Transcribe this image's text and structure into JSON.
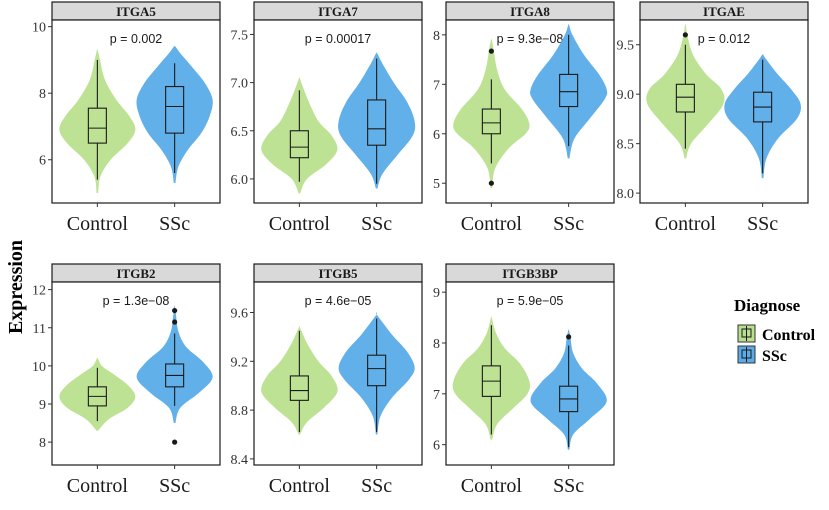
{
  "figure": {
    "ylabel": "Expression",
    "legend": {
      "title": "Diagnose",
      "items": [
        "Control",
        "SSc"
      ]
    },
    "colors": {
      "Control": "#b9e08e",
      "SSc": "#5aace8",
      "strip": "#d9d9d9"
    }
  },
  "chart_data": [
    {
      "type": "violin",
      "title": "ITGA5",
      "pvalue": "p = 0.002",
      "categories": [
        "Control",
        "SSc"
      ],
      "ylim": [
        4.7,
        10.2
      ],
      "yticks": [
        6,
        8,
        10
      ],
      "groups": [
        {
          "name": "Control",
          "min": 5.0,
          "max": 9.3,
          "q1": 6.5,
          "median": 6.95,
          "q3": 7.55,
          "whisker_low": 5.4,
          "whisker_high": 9.0,
          "outliers": [],
          "shape": [
            [
              5.0,
              0.02
            ],
            [
              5.5,
              0.08
            ],
            [
              6.0,
              0.35
            ],
            [
              6.5,
              0.8
            ],
            [
              6.9,
              1.0
            ],
            [
              7.3,
              0.85
            ],
            [
              7.8,
              0.5
            ],
            [
              8.4,
              0.2
            ],
            [
              9.0,
              0.07
            ],
            [
              9.3,
              0.01
            ]
          ]
        },
        {
          "name": "SSc",
          "min": 5.3,
          "max": 9.4,
          "q1": 6.8,
          "median": 7.6,
          "q3": 8.2,
          "whisker_low": 5.6,
          "whisker_high": 8.9,
          "outliers": [],
          "shape": [
            [
              5.3,
              0.02
            ],
            [
              5.8,
              0.1
            ],
            [
              6.3,
              0.35
            ],
            [
              6.8,
              0.7
            ],
            [
              7.3,
              0.92
            ],
            [
              7.8,
              1.0
            ],
            [
              8.3,
              0.8
            ],
            [
              8.8,
              0.45
            ],
            [
              9.2,
              0.15
            ],
            [
              9.4,
              0.02
            ]
          ]
        }
      ]
    },
    {
      "type": "violin",
      "title": "ITGA7",
      "pvalue": "p = 0.00017",
      "categories": [
        "Control",
        "SSc"
      ],
      "ylim": [
        5.75,
        7.65
      ],
      "yticks": [
        6.0,
        6.5,
        7.0,
        7.5
      ],
      "groups": [
        {
          "name": "Control",
          "min": 5.85,
          "max": 7.05,
          "q1": 6.22,
          "median": 6.33,
          "q3": 6.5,
          "whisker_low": 5.97,
          "whisker_high": 6.92,
          "outliers": [],
          "shape": [
            [
              5.85,
              0.02
            ],
            [
              6.0,
              0.2
            ],
            [
              6.15,
              0.7
            ],
            [
              6.3,
              1.0
            ],
            [
              6.45,
              0.85
            ],
            [
              6.6,
              0.5
            ],
            [
              6.8,
              0.25
            ],
            [
              7.0,
              0.05
            ],
            [
              7.05,
              0.01
            ]
          ]
        },
        {
          "name": "SSc",
          "min": 5.9,
          "max": 7.3,
          "q1": 6.35,
          "median": 6.52,
          "q3": 6.82,
          "whisker_low": 5.95,
          "whisker_high": 7.25,
          "outliers": [],
          "shape": [
            [
              5.9,
              0.02
            ],
            [
              6.05,
              0.15
            ],
            [
              6.25,
              0.55
            ],
            [
              6.45,
              0.95
            ],
            [
              6.6,
              1.0
            ],
            [
              6.8,
              0.8
            ],
            [
              7.0,
              0.45
            ],
            [
              7.2,
              0.15
            ],
            [
              7.3,
              0.02
            ]
          ]
        }
      ]
    },
    {
      "type": "violin",
      "title": "ITGA8",
      "pvalue": "p = 9.3e−08",
      "categories": [
        "Control",
        "SSc"
      ],
      "ylim": [
        4.6,
        8.3
      ],
      "yticks": [
        5,
        6,
        7,
        8
      ],
      "groups": [
        {
          "name": "Control",
          "min": 4.9,
          "max": 7.9,
          "q1": 6.0,
          "median": 6.22,
          "q3": 6.5,
          "whisker_low": 5.4,
          "whisker_high": 7.1,
          "outliers": [
            7.67,
            5.0
          ],
          "shape": [
            [
              4.9,
              0.02
            ],
            [
              5.3,
              0.1
            ],
            [
              5.7,
              0.45
            ],
            [
              6.0,
              0.9
            ],
            [
              6.2,
              1.0
            ],
            [
              6.5,
              0.8
            ],
            [
              6.9,
              0.35
            ],
            [
              7.3,
              0.15
            ],
            [
              7.7,
              0.06
            ],
            [
              7.9,
              0.01
            ]
          ]
        },
        {
          "name": "SSc",
          "min": 5.5,
          "max": 8.2,
          "q1": 6.55,
          "median": 6.85,
          "q3": 7.2,
          "whisker_low": 5.75,
          "whisker_high": 8.0,
          "outliers": [],
          "shape": [
            [
              5.5,
              0.02
            ],
            [
              5.9,
              0.15
            ],
            [
              6.3,
              0.55
            ],
            [
              6.7,
              0.95
            ],
            [
              6.9,
              1.0
            ],
            [
              7.2,
              0.8
            ],
            [
              7.6,
              0.4
            ],
            [
              8.0,
              0.1
            ],
            [
              8.2,
              0.01
            ]
          ]
        }
      ]
    },
    {
      "type": "violin",
      "title": "ITGAE",
      "pvalue": "p = 0.012",
      "categories": [
        "Control",
        "SSc"
      ],
      "ylim": [
        7.9,
        9.75
      ],
      "yticks": [
        8.0,
        8.5,
        9.0,
        9.5
      ],
      "groups": [
        {
          "name": "Control",
          "min": 8.35,
          "max": 9.7,
          "q1": 8.82,
          "median": 8.97,
          "q3": 9.1,
          "whisker_low": 8.45,
          "whisker_high": 9.5,
          "outliers": [
            9.6
          ],
          "shape": [
            [
              8.35,
              0.02
            ],
            [
              8.5,
              0.15
            ],
            [
              8.7,
              0.6
            ],
            [
              8.9,
              1.0
            ],
            [
              9.05,
              0.95
            ],
            [
              9.2,
              0.55
            ],
            [
              9.4,
              0.2
            ],
            [
              9.6,
              0.05
            ],
            [
              9.7,
              0.01
            ]
          ]
        },
        {
          "name": "SSc",
          "min": 8.15,
          "max": 9.4,
          "q1": 8.72,
          "median": 8.87,
          "q3": 9.02,
          "whisker_low": 8.2,
          "whisker_high": 9.35,
          "outliers": [],
          "shape": [
            [
              8.15,
              0.02
            ],
            [
              8.35,
              0.1
            ],
            [
              8.55,
              0.4
            ],
            [
              8.75,
              0.9
            ],
            [
              8.9,
              1.0
            ],
            [
              9.05,
              0.75
            ],
            [
              9.2,
              0.4
            ],
            [
              9.35,
              0.1
            ],
            [
              9.4,
              0.01
            ]
          ]
        }
      ]
    },
    {
      "type": "violin",
      "title": "ITGB2",
      "pvalue": "p = 1.3e−08",
      "categories": [
        "Control",
        "SSc"
      ],
      "ylim": [
        7.4,
        12.2
      ],
      "yticks": [
        8,
        9,
        10,
        11,
        12
      ],
      "groups": [
        {
          "name": "Control",
          "min": 8.3,
          "max": 10.2,
          "q1": 8.95,
          "median": 9.2,
          "q3": 9.45,
          "whisker_low": 8.55,
          "whisker_high": 9.95,
          "outliers": [],
          "shape": [
            [
              8.3,
              0.02
            ],
            [
              8.6,
              0.3
            ],
            [
              8.9,
              0.8
            ],
            [
              9.2,
              1.0
            ],
            [
              9.5,
              0.8
            ],
            [
              9.8,
              0.4
            ],
            [
              10.0,
              0.12
            ],
            [
              10.2,
              0.01
            ]
          ]
        },
        {
          "name": "SSc",
          "min": 8.5,
          "max": 11.55,
          "q1": 9.45,
          "median": 9.75,
          "q3": 10.05,
          "whisker_low": 8.95,
          "whisker_high": 10.85,
          "outliers": [
            11.45,
            11.15,
            8.0
          ],
          "shape": [
            [
              8.5,
              0.02
            ],
            [
              8.9,
              0.15
            ],
            [
              9.3,
              0.65
            ],
            [
              9.7,
              1.0
            ],
            [
              10.1,
              0.75
            ],
            [
              10.5,
              0.3
            ],
            [
              10.9,
              0.1
            ],
            [
              11.3,
              0.04
            ],
            [
              11.55,
              0.01
            ]
          ]
        }
      ]
    },
    {
      "type": "violin",
      "title": "ITGB5",
      "pvalue": "p = 4.6e−05",
      "categories": [
        "Control",
        "SSc"
      ],
      "ylim": [
        8.35,
        9.85
      ],
      "yticks": [
        8.4,
        8.8,
        9.2,
        9.6
      ],
      "groups": [
        {
          "name": "Control",
          "min": 8.6,
          "max": 9.48,
          "q1": 8.88,
          "median": 8.96,
          "q3": 9.08,
          "whisker_low": 8.62,
          "whisker_high": 9.45,
          "outliers": [],
          "shape": [
            [
              8.6,
              0.02
            ],
            [
              8.7,
              0.2
            ],
            [
              8.82,
              0.65
            ],
            [
              8.95,
              1.0
            ],
            [
              9.08,
              0.85
            ],
            [
              9.2,
              0.5
            ],
            [
              9.35,
              0.2
            ],
            [
              9.48,
              0.01
            ]
          ]
        },
        {
          "name": "SSc",
          "min": 8.6,
          "max": 9.58,
          "q1": 9.0,
          "median": 9.14,
          "q3": 9.25,
          "whisker_low": 8.62,
          "whisker_high": 9.55,
          "outliers": [],
          "shape": [
            [
              8.6,
              0.02
            ],
            [
              8.75,
              0.1
            ],
            [
              8.9,
              0.4
            ],
            [
              9.05,
              0.85
            ],
            [
              9.15,
              1.0
            ],
            [
              9.28,
              0.8
            ],
            [
              9.42,
              0.4
            ],
            [
              9.58,
              0.01
            ]
          ]
        }
      ]
    },
    {
      "type": "violin",
      "title": "ITGB3BP",
      "pvalue": "p = 5.9e−05",
      "categories": [
        "Control",
        "SSc"
      ],
      "ylim": [
        5.6,
        9.2
      ],
      "yticks": [
        6,
        7,
        8,
        9
      ],
      "groups": [
        {
          "name": "Control",
          "min": 6.1,
          "max": 8.5,
          "q1": 6.95,
          "median": 7.25,
          "q3": 7.55,
          "whisker_low": 6.2,
          "whisker_high": 8.35,
          "outliers": [],
          "shape": [
            [
              6.1,
              0.02
            ],
            [
              6.4,
              0.15
            ],
            [
              6.7,
              0.55
            ],
            [
              7.0,
              0.95
            ],
            [
              7.25,
              1.0
            ],
            [
              7.6,
              0.75
            ],
            [
              7.9,
              0.35
            ],
            [
              8.2,
              0.12
            ],
            [
              8.5,
              0.01
            ]
          ]
        },
        {
          "name": "SSc",
          "min": 5.9,
          "max": 8.25,
          "q1": 6.65,
          "median": 6.9,
          "q3": 7.15,
          "whisker_low": 5.95,
          "whisker_high": 7.95,
          "outliers": [
            8.12
          ],
          "shape": [
            [
              5.9,
              0.02
            ],
            [
              6.2,
              0.12
            ],
            [
              6.5,
              0.55
            ],
            [
              6.85,
              1.0
            ],
            [
              7.2,
              0.75
            ],
            [
              7.5,
              0.35
            ],
            [
              7.8,
              0.12
            ],
            [
              8.1,
              0.05
            ],
            [
              8.25,
              0.01
            ]
          ]
        }
      ]
    }
  ]
}
